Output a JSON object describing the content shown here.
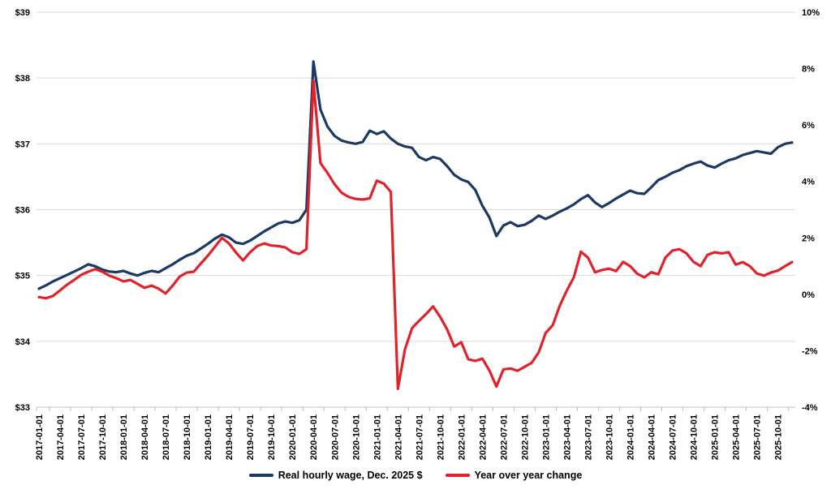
{
  "chart_data": {
    "type": "line",
    "title": "",
    "x_start": "2017-01-01",
    "x_end": "2025-12-01",
    "x_frequency": "monthly",
    "grid_color": "#d9d9d9",
    "axis_color": "#bfbfbf",
    "legend_position": "bottom",
    "left_axis": {
      "min": 33,
      "max": 39,
      "step": 1,
      "ticks": [
        "$39",
        "$38",
        "$37",
        "$36",
        "$35",
        "$34",
        "$33"
      ]
    },
    "right_axis": {
      "min": -4,
      "max": 10,
      "step": 2,
      "ticks": [
        "10%",
        "8%",
        "6%",
        "4%",
        "2%",
        "0%",
        "-2%",
        "-4%"
      ]
    },
    "x_tick_labels": [
      "2017-01-01",
      "2017-04-01",
      "2017-07-01",
      "2017-10-01",
      "2018-01-01",
      "2018-04-01",
      "2018-07-01",
      "2018-10-01",
      "2019-01-01",
      "2019-04-01",
      "2019-07-01",
      "2019-10-01",
      "2020-01-01",
      "2020-04-01",
      "2020-07-01",
      "2020-10-01",
      "2021-01-01",
      "2021-04-01",
      "2021-07-01",
      "2021-10-01",
      "2022-01-01",
      "2022-04-01",
      "2022-07-01",
      "2022-10-01",
      "2023-01-01",
      "2023-04-01",
      "2023-07-01",
      "2023-10-01",
      "2024-01-01",
      "2024-04-01",
      "2024-07-01",
      "2024-10-01",
      "2025-01-01",
      "2025-04-01",
      "2025-07-01",
      "2025-10-01"
    ],
    "series": [
      {
        "name": "Real hourly wage, Dec. 2025 $",
        "color": "#1a3a64",
        "axis": "left",
        "values": [
          34.8,
          34.85,
          34.91,
          34.96,
          35.01,
          35.06,
          35.11,
          35.17,
          35.14,
          35.09,
          35.06,
          35.05,
          35.07,
          35.03,
          35.0,
          35.04,
          35.07,
          35.05,
          35.11,
          35.17,
          35.24,
          35.3,
          35.34,
          35.41,
          35.48,
          35.56,
          35.62,
          35.58,
          35.5,
          35.48,
          35.53,
          35.6,
          35.67,
          35.73,
          35.79,
          35.82,
          35.8,
          35.84,
          36.0,
          38.25,
          37.52,
          37.26,
          37.12,
          37.05,
          37.02,
          37.0,
          37.03,
          37.2,
          37.15,
          37.19,
          37.08,
          37.0,
          36.96,
          36.94,
          36.8,
          36.75,
          36.8,
          36.77,
          36.66,
          36.53,
          36.46,
          36.42,
          36.3,
          36.06,
          35.88,
          35.6,
          35.76,
          35.81,
          35.75,
          35.77,
          35.83,
          35.91,
          35.86,
          35.91,
          35.97,
          36.02,
          36.08,
          36.16,
          36.22,
          36.11,
          36.04,
          36.1,
          36.17,
          36.23,
          36.29,
          36.25,
          36.24,
          36.34,
          36.45,
          36.5,
          36.56,
          36.6,
          36.66,
          36.7,
          36.73,
          36.67,
          36.64,
          36.7,
          36.75,
          36.78,
          36.83,
          36.86,
          36.89,
          36.87,
          36.85,
          36.95,
          37.0,
          37.02
        ]
      },
      {
        "name": "Year over year change",
        "color": "#e3212b",
        "axis": "right",
        "values": [
          -0.1,
          -0.14,
          -0.06,
          0.14,
          0.34,
          0.51,
          0.69,
          0.8,
          0.89,
          0.8,
          0.66,
          0.57,
          0.46,
          0.51,
          0.37,
          0.23,
          0.31,
          0.2,
          0.03,
          0.31,
          0.63,
          0.77,
          0.8,
          1.09,
          1.37,
          1.68,
          2.0,
          1.8,
          1.48,
          1.2,
          1.49,
          1.71,
          1.8,
          1.73,
          1.71,
          1.66,
          1.49,
          1.43,
          1.6,
          7.57,
          4.65,
          4.3,
          3.9,
          3.6,
          3.45,
          3.38,
          3.36,
          3.4,
          4.03,
          3.92,
          3.63,
          -3.35,
          -1.95,
          -1.2,
          -0.94,
          -0.7,
          -0.43,
          -0.8,
          -1.25,
          -1.85,
          -1.7,
          -2.3,
          -2.36,
          -2.28,
          -2.7,
          -3.27,
          -2.66,
          -2.63,
          -2.71,
          -2.57,
          -2.43,
          -2.06,
          -1.37,
          -1.1,
          -0.4,
          0.14,
          0.6,
          1.51,
          1.3,
          0.78,
          0.86,
          0.91,
          0.82,
          1.15,
          1.0,
          0.73,
          0.6,
          0.78,
          0.71,
          1.3,
          1.55,
          1.6,
          1.45,
          1.15,
          1.0,
          1.4,
          1.49,
          1.45,
          1.49,
          1.05,
          1.14,
          1.0,
          0.74,
          0.66,
          0.77,
          0.84,
          1.0,
          1.14
        ]
      }
    ]
  }
}
